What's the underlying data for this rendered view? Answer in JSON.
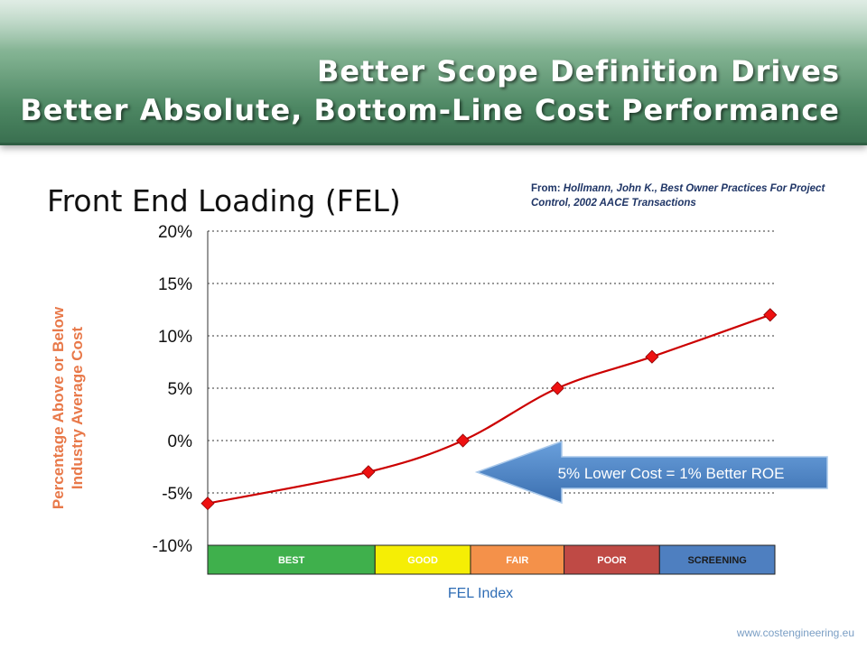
{
  "title": {
    "line1": "Better Scope Definition Drives",
    "line2": "Better Absolute, Bottom-Line Cost Performance"
  },
  "heading": "Front End Loading (FEL)",
  "source": {
    "prefix": "From: ",
    "citation": "Hollmann, John K., Best Owner Practices For Project Control, 2002 AACE Transactions"
  },
  "footer": "www.costengineering.eu",
  "callout": "5% Lower Cost = 1% Better ROE",
  "colors": {
    "line": "#cc0000",
    "marker": "#ee1111",
    "callout": "#4e86c8",
    "ylabel": "#e8794a"
  },
  "chart_data": {
    "type": "line",
    "xlabel": "FEL Index",
    "ylabel": "Percentage Above or Below Industry Average Cost",
    "ylim": [
      -0.1,
      0.2
    ],
    "yticks": [
      "20%",
      "15%",
      "10%",
      "5%",
      "0%",
      "-5%",
      "-10%"
    ],
    "ytick_values": [
      0.2,
      0.15,
      0.1,
      0.05,
      0.0,
      -0.05,
      -0.1
    ],
    "grid": "horizontal-dotted",
    "xlim": [
      0,
      6
    ],
    "x": [
      0,
      1.7,
      2.7,
      3.7,
      4.7,
      5.95
    ],
    "y": [
      -0.06,
      -0.03,
      0.0,
      0.05,
      0.08,
      0.12
    ],
    "bands": [
      {
        "label": "BEST",
        "x0": 0,
        "x1": 1.77,
        "color": "#3fb04c",
        "text": "#ffffff"
      },
      {
        "label": "GOOD",
        "x0": 1.77,
        "x1": 2.78,
        "color": "#f5ee05",
        "text": "#ffffff"
      },
      {
        "label": "FAIR",
        "x0": 2.78,
        "x1": 3.77,
        "color": "#f4914a",
        "text": "#ffffff"
      },
      {
        "label": "POOR",
        "x0": 3.77,
        "x1": 4.78,
        "color": "#bf4a45",
        "text": "#ffffff"
      },
      {
        "label": "SCREENING",
        "x0": 4.78,
        "x1": 6,
        "color": "#4e7fc0",
        "text": "#1b1b1b"
      }
    ]
  }
}
